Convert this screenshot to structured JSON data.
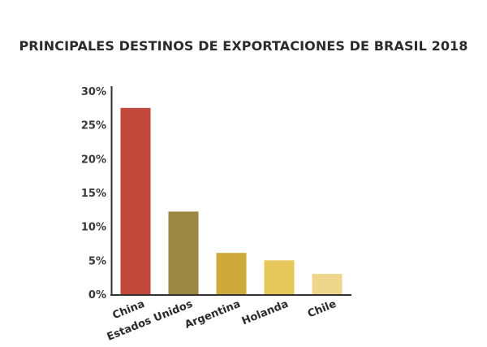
{
  "chart_data": {
    "type": "bar",
    "title": "PRINCIPALES DESTINOS DE EXPORTACIONES DE BRASIL 2018",
    "categories": [
      "China",
      "Estados Unidos",
      "Argentina",
      "Holanda",
      "Chile"
    ],
    "values": [
      27.5,
      12.2,
      6.1,
      5.0,
      3.0
    ],
    "colors": [
      "#c1483a",
      "#9b8743",
      "#cdaa3b",
      "#e6c75b",
      "#eed68d"
    ],
    "ylim": [
      0,
      30
    ],
    "yticks": [
      "0%",
      "5%",
      "10%",
      "15%",
      "20%",
      "25%",
      "30%"
    ],
    "ytick_values": [
      0,
      5,
      10,
      15,
      20,
      25,
      30
    ],
    "xlabel": "",
    "ylabel": "",
    "grid": false
  }
}
